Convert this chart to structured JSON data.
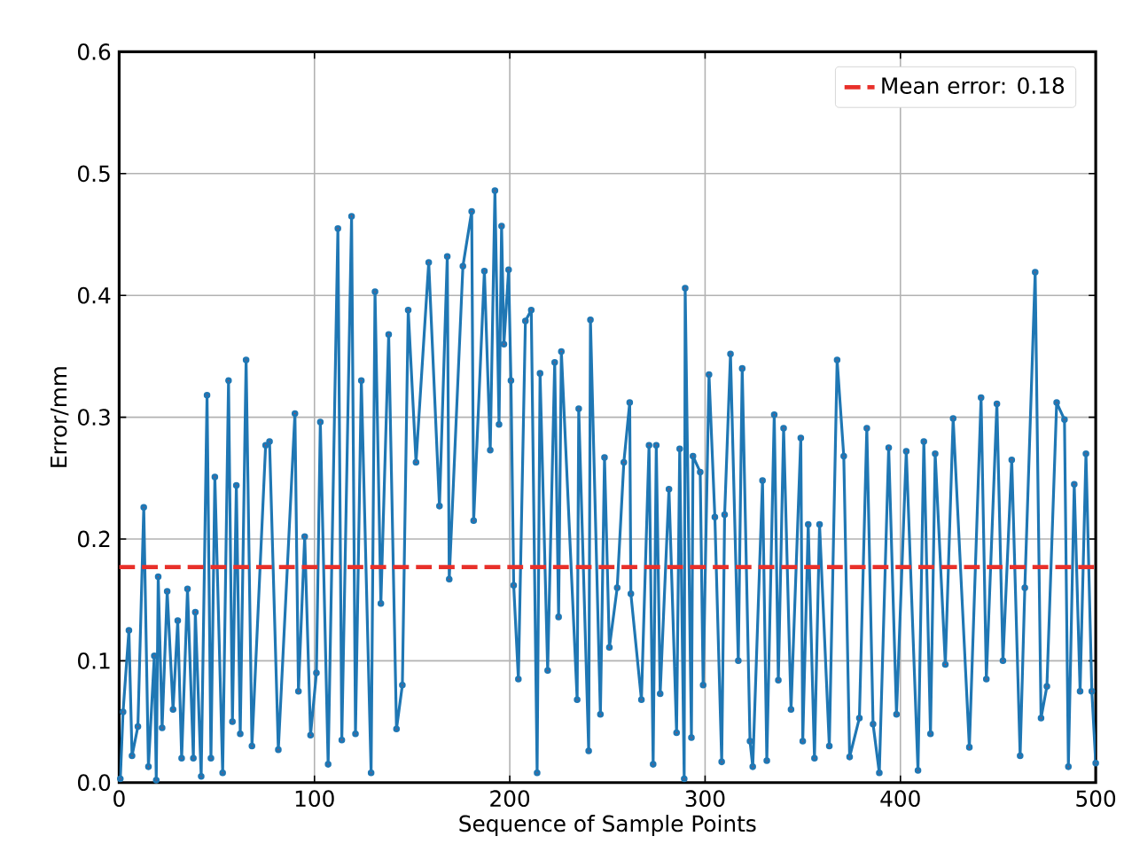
{
  "chart_data": {
    "type": "line",
    "xlabel": "Sequence of Sample Points",
    "ylabel": "Error/mm",
    "series": [
      {
        "color": "#1f77b4",
        "marker": "circle",
        "x": [
          0.6,
          2,
          5,
          6.6,
          9.6,
          12.6,
          15,
          18,
          19,
          20,
          22,
          24.6,
          27.6,
          30,
          32,
          35,
          38,
          39,
          42,
          45,
          47,
          49,
          53,
          56,
          58,
          60,
          62,
          65,
          68,
          75,
          77,
          81.5,
          90,
          91.8,
          95,
          98,
          101,
          103,
          107,
          112,
          114,
          119,
          121,
          124,
          129,
          131,
          134,
          138,
          142,
          145,
          148,
          152,
          158.5,
          164,
          168,
          169,
          176,
          180.5,
          181.5,
          187,
          190,
          192.4,
          194.5,
          195.8,
          197,
          199.4,
          200.6,
          202,
          204.4,
          208,
          211,
          214,
          215.5,
          219.4,
          223,
          225,
          226.4,
          234.5,
          235.3,
          240.4,
          241.3,
          246.4,
          248.5,
          251,
          255,
          258.4,
          261.4,
          262,
          267.4,
          271.3,
          273.4,
          275,
          277,
          281.5,
          285.4,
          287,
          289.3,
          289.8,
          293,
          293.8,
          297.5,
          299,
          302,
          305,
          308.5,
          310,
          313,
          317,
          319,
          323,
          324.4,
          329.4,
          331.6,
          335.4,
          337.5,
          340.2,
          344,
          349,
          350,
          352.8,
          356,
          358.6,
          363.6,
          367.6,
          371,
          374,
          379,
          382.8,
          386,
          389.2,
          394,
          398,
          403,
          409,
          412,
          415.4,
          417.8,
          423,
          427,
          435.3,
          441.3,
          444,
          449.4,
          452.5,
          457,
          461.3,
          463.7,
          469,
          472,
          475,
          480,
          484,
          486,
          489,
          492,
          495,
          498,
          500
        ],
        "values": [
          0.003,
          0.058,
          0.125,
          0.022,
          0.046,
          0.226,
          0.013,
          0.104,
          0.002,
          0.169,
          0.045,
          0.157,
          0.06,
          0.133,
          0.02,
          0.159,
          0.02,
          0.14,
          0.005,
          0.318,
          0.02,
          0.251,
          0.008,
          0.33,
          0.05,
          0.244,
          0.04,
          0.347,
          0.03,
          0.277,
          0.28,
          0.027,
          0.303,
          0.075,
          0.202,
          0.039,
          0.09,
          0.296,
          0.015,
          0.455,
          0.035,
          0.465,
          0.04,
          0.33,
          0.008,
          0.403,
          0.147,
          0.368,
          0.044,
          0.08,
          0.388,
          0.263,
          0.427,
          0.227,
          0.432,
          0.167,
          0.424,
          0.469,
          0.215,
          0.42,
          0.273,
          0.486,
          0.294,
          0.457,
          0.36,
          0.421,
          0.33,
          0.162,
          0.085,
          0.379,
          0.388,
          0.008,
          0.336,
          0.092,
          0.345,
          0.136,
          0.354,
          0.068,
          0.307,
          0.026,
          0.38,
          0.056,
          0.267,
          0.111,
          0.16,
          0.263,
          0.312,
          0.155,
          0.068,
          0.277,
          0.015,
          0.277,
          0.073,
          0.241,
          0.041,
          0.274,
          0.003,
          0.406,
          0.037,
          0.268,
          0.255,
          0.08,
          0.335,
          0.218,
          0.017,
          0.22,
          0.352,
          0.1,
          0.34,
          0.034,
          0.013,
          0.248,
          0.018,
          0.302,
          0.084,
          0.291,
          0.06,
          0.283,
          0.034,
          0.212,
          0.02,
          0.212,
          0.03,
          0.347,
          0.268,
          0.021,
          0.053,
          0.291,
          0.048,
          0.008,
          0.275,
          0.056,
          0.272,
          0.01,
          0.28,
          0.04,
          0.27,
          0.097,
          0.299,
          0.029,
          0.316,
          0.085,
          0.311,
          0.1,
          0.265,
          0.022,
          0.16,
          0.419,
          0.053,
          0.079,
          0.312,
          0.298,
          0.013,
          0.245,
          0.075,
          0.27,
          0.075,
          0.016
        ]
      }
    ],
    "xlim": [
      0,
      500
    ],
    "ylim": [
      0,
      0.6
    ],
    "xticks": [
      0,
      100,
      200,
      300,
      400,
      500
    ],
    "yticks": [
      {
        "value": 0,
        "label": "0.0"
      },
      {
        "value": 0.1,
        "label": "0.1"
      },
      {
        "value": 0.2,
        "label": "0.2"
      },
      {
        "value": 0.3,
        "label": "0.3"
      },
      {
        "value": 0.4,
        "label": "0.4"
      },
      {
        "value": 0.5,
        "label": "0.5"
      },
      {
        "value": 0.6,
        "label": "0.6"
      }
    ],
    "ref_lines": [
      {
        "axis": "y",
        "value": 0.177,
        "label": "Mean error: 0.18",
        "color": "#e8302a",
        "line_style": "dashed"
      }
    ],
    "grid": true,
    "legend": "top right"
  }
}
